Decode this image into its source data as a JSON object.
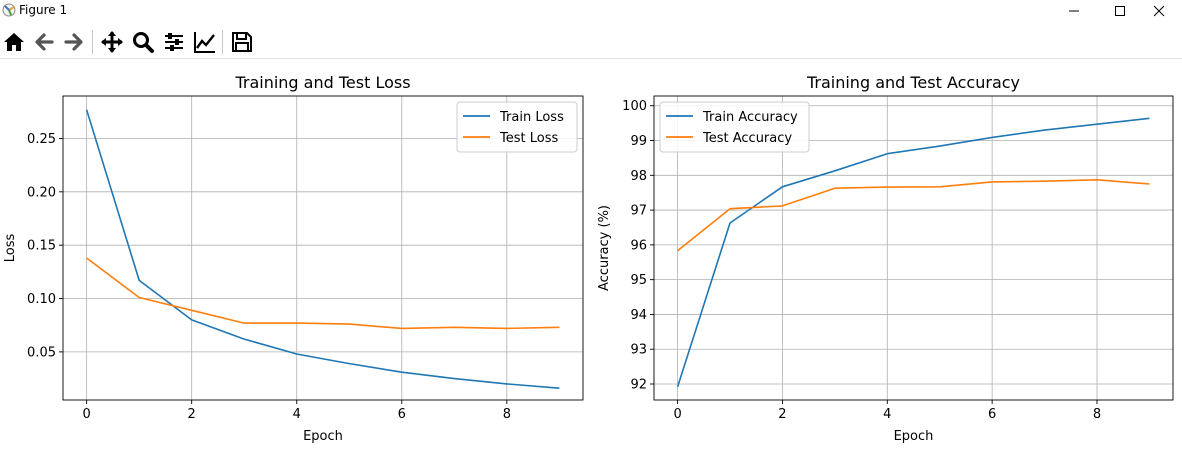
{
  "window": {
    "title": "Figure 1"
  },
  "toolbar": {
    "buttons": [
      {
        "name": "home-icon"
      },
      {
        "name": "back-icon"
      },
      {
        "name": "forward-icon"
      },
      {
        "name": "pan-icon"
      },
      {
        "name": "zoom-icon"
      },
      {
        "name": "configure-subplots-icon"
      },
      {
        "name": "edit-axis-icon"
      },
      {
        "name": "save-icon"
      }
    ]
  },
  "colors": {
    "train": "#1f77b4",
    "test": "#ff7f0e",
    "grid": "#b0b0b0"
  },
  "chart_data": [
    {
      "type": "line",
      "title": "Training and Test Loss",
      "xlabel": "Epoch",
      "ylabel": "Loss",
      "x": [
        0,
        1,
        2,
        3,
        4,
        5,
        6,
        7,
        8,
        9
      ],
      "xlim": [
        -0.45,
        9.45
      ],
      "ylim": [
        0.0049,
        0.2898
      ],
      "xticks": [
        0,
        2,
        4,
        6,
        8
      ],
      "yticks": [
        0.05,
        0.1,
        0.15,
        0.2,
        0.25
      ],
      "ytick_labels": [
        "0.05",
        "0.10",
        "0.15",
        "0.20",
        "0.25"
      ],
      "grid": true,
      "legend": "upper right",
      "series": [
        {
          "name": "Train Loss",
          "color": "#1f77b4",
          "values": [
            0.277,
            0.117,
            0.08,
            0.062,
            0.048,
            0.039,
            0.031,
            0.025,
            0.02,
            0.016
          ]
        },
        {
          "name": "Test Loss",
          "color": "#ff7f0e",
          "values": [
            0.138,
            0.101,
            0.089,
            0.077,
            0.077,
            0.076,
            0.072,
            0.073,
            0.072,
            0.073
          ]
        }
      ]
    },
    {
      "type": "line",
      "title": "Training and Test Accuracy",
      "xlabel": "Epoch",
      "ylabel": "Accuracy (%)",
      "x": [
        0,
        1,
        2,
        3,
        4,
        5,
        6,
        7,
        8,
        9
      ],
      "xlim": [
        -0.45,
        9.45
      ],
      "ylim": [
        91.54,
        100.28
      ],
      "xticks": [
        0,
        2,
        4,
        6,
        8
      ],
      "yticks": [
        92,
        93,
        94,
        95,
        96,
        97,
        98,
        99,
        100
      ],
      "ytick_labels": [
        "92",
        "93",
        "94",
        "95",
        "96",
        "97",
        "98",
        "99",
        "100"
      ],
      "grid": true,
      "legend": "upper left",
      "series": [
        {
          "name": "Train Accuracy",
          "color": "#1f77b4",
          "values": [
            91.92,
            96.63,
            97.67,
            98.13,
            98.62,
            98.84,
            99.09,
            99.3,
            99.47,
            99.64
          ]
        },
        {
          "name": "Test Accuracy",
          "color": "#ff7f0e",
          "values": [
            95.83,
            97.04,
            97.12,
            97.63,
            97.66,
            97.67,
            97.81,
            97.83,
            97.87,
            97.75
          ]
        }
      ]
    }
  ]
}
